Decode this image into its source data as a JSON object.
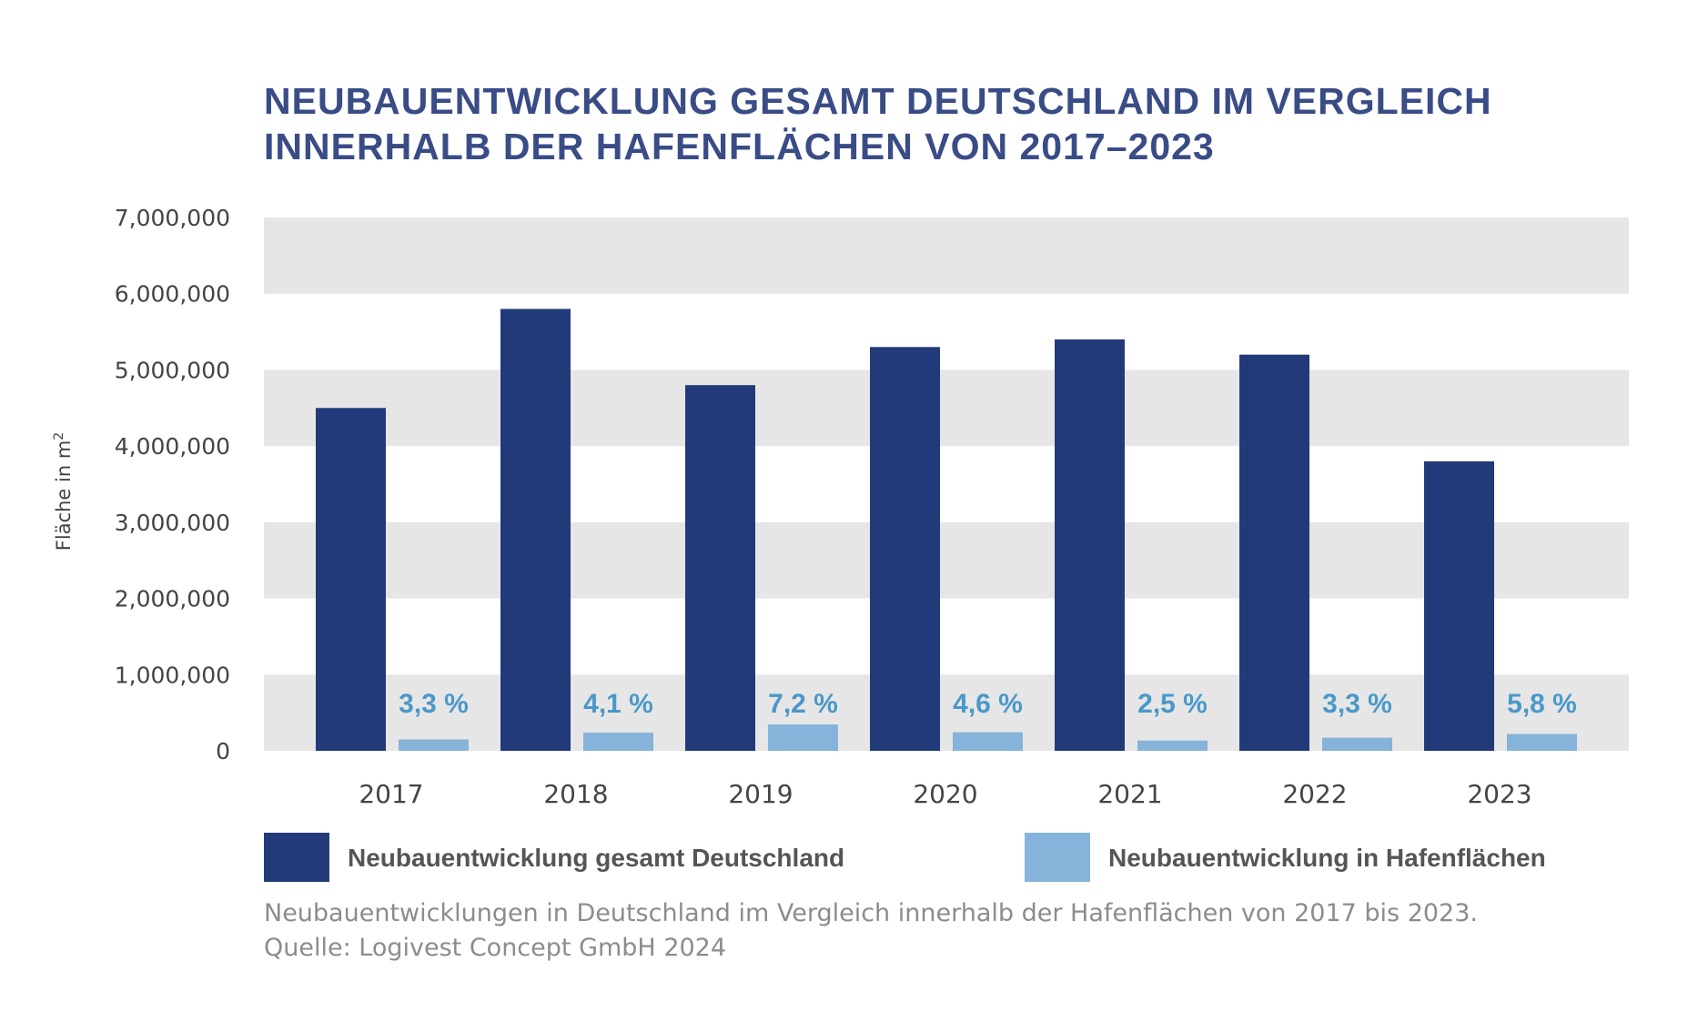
{
  "colors": {
    "title": "#3a4c86",
    "series_total": "#233a7a",
    "series_harbor": "#85b3d9",
    "pct_label": "#4a98c9",
    "band": "#e6e6e6",
    "tick_text": "#444444",
    "legend_text": "#555555",
    "caption_text": "#8c8c8c"
  },
  "title_lines": [
    "NEUBAUENTWICKLUNG GESAMT DEUTSCHLAND IM VERGLEICH",
    "INNERHALB DER HAFENFLÄCHEN VON 2017–2023"
  ],
  "caption_lines": [
    "Neubauentwicklungen in Deutschland im Vergleich innerhalb der Hafenflächen von 2017 bis 2023.",
    "Quelle: Logivest Concept GmbH 2024"
  ],
  "chart_data": {
    "type": "bar",
    "categories": [
      "2017",
      "2018",
      "2019",
      "2020",
      "2021",
      "2022",
      "2023"
    ],
    "series": [
      {
        "name": "Neubauentwicklung gesamt Deutschland",
        "values": [
          4500000,
          5800000,
          4800000,
          5300000,
          5400000,
          5200000,
          3800000
        ]
      },
      {
        "name": "Neubauentwicklung in Hafenflächen",
        "values": [
          148500,
          237800,
          345600,
          243800,
          135000,
          171600,
          220400
        ]
      }
    ],
    "data_labels": [
      "3,3 %",
      "4,1 %",
      "7,2 %",
      "4,6 %",
      "2,5 %",
      "3,3 %",
      "5,8 %"
    ],
    "ylabel_main": "Fläche in m",
    "ylabel_sup": "2",
    "ylim": [
      0,
      7000000
    ],
    "yticks": [
      0,
      1000000,
      2000000,
      3000000,
      4000000,
      5000000,
      6000000,
      7000000
    ],
    "ytick_labels": [
      "0",
      "1,000,000",
      "2,000,000",
      "3,000,000",
      "4,000,000",
      "5,000,000",
      "6,000,000",
      "7,000,000"
    ],
    "alternating_bands": true,
    "legend_position": "bottom"
  }
}
